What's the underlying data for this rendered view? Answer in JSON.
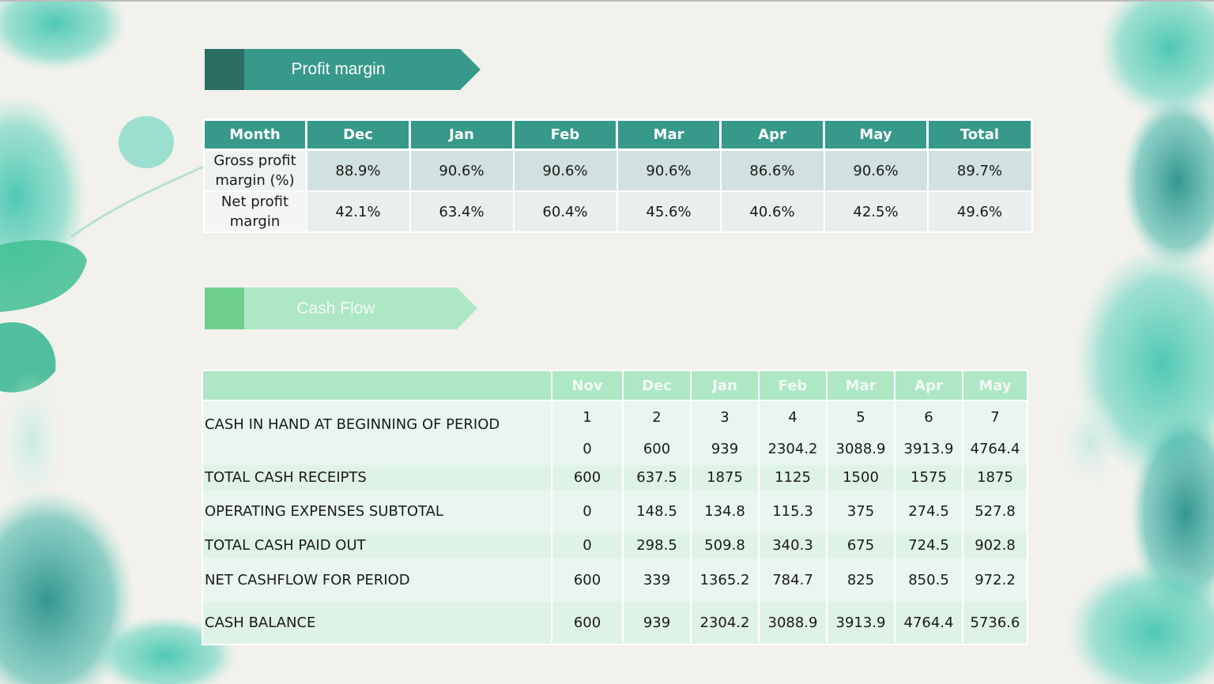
{
  "profit_margin": {
    "title": "Profit margin",
    "headers": [
      "Month",
      "Dec",
      "Jan",
      "Feb",
      "Mar",
      "Apr",
      "May",
      "Total"
    ],
    "rows": [
      {
        "label_line1": "Gross profit",
        "label_line2": "margin (%)",
        "values": [
          "88.9%",
          "90.6%",
          "90.6%",
          "90.6%",
          "86.6%",
          "90.6%",
          "89.7%"
        ]
      },
      {
        "label_line1": "Net profit",
        "label_line2": "margin",
        "values": [
          "42.1%",
          "63.4%",
          "60.4%",
          "45.6%",
          "40.6%",
          "42.5%",
          "49.6%"
        ]
      }
    ]
  },
  "cash_flow": {
    "title": "Cash Flow",
    "headers": [
      "",
      "Nov",
      "Dec",
      "Jan",
      "Feb",
      "Mar",
      "Apr",
      "May"
    ],
    "rows": [
      {
        "label": "CASH IN HAND AT BEGINNING OF PERIOD",
        "values": [
          "1",
          "2",
          "3",
          "4",
          "5",
          "6",
          "7"
        ]
      },
      {
        "label": "",
        "values": [
          "0",
          "600",
          "939",
          "2304.2",
          "3088.9",
          "3913.9",
          "4764.4"
        ]
      },
      {
        "label": "TOTAL CASH RECEIPTS",
        "values": [
          "600",
          "637.5",
          "1875",
          "1125",
          "1500",
          "1575",
          "1875"
        ]
      },
      {
        "label": "OPERATING EXPENSES SUBTOTAL",
        "values": [
          "0",
          "148.5",
          "134.8",
          "115.3",
          "375",
          "274.5",
          "527.8"
        ]
      },
      {
        "label": "TOTAL CASH PAID OUT",
        "values": [
          "0",
          "298.5",
          "509.8",
          "340.3",
          "675",
          "724.5",
          "902.8"
        ]
      },
      {
        "label": "NET CASHFLOW FOR PERIOD",
        "values": [
          "600",
          "339",
          "1365.2",
          "784.7",
          "825",
          "850.5",
          "972.2"
        ]
      },
      {
        "label": "CASH BALANCE",
        "values": [
          "600",
          "939",
          "2304.2",
          "3088.9",
          "3913.9",
          "4764.4",
          "5736.6"
        ]
      }
    ]
  },
  "colors": {
    "teal_dark": "#2a6e62",
    "teal": "#36998a",
    "mint": "#aee7c4",
    "mint_dark": "#6fd08e",
    "background": "#f2f1ec"
  }
}
